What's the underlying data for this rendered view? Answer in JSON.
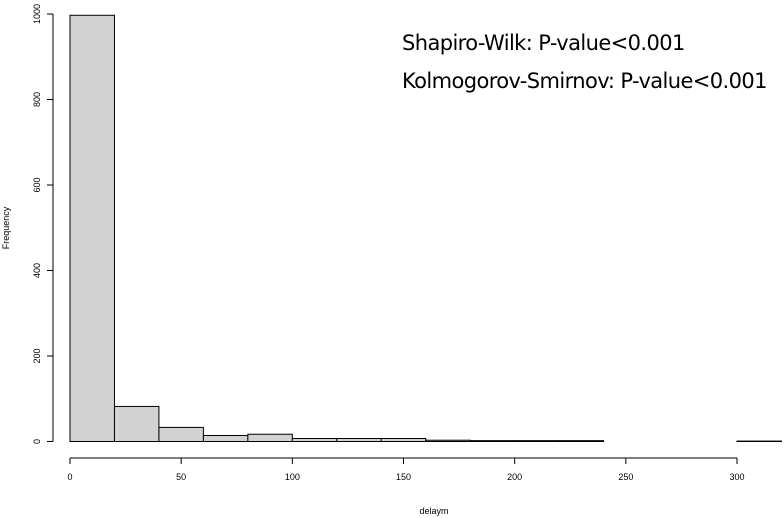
{
  "chart_data": {
    "type": "bar",
    "subtype": "histogram",
    "title": "",
    "xlabel": "delaym",
    "ylabel": "Frequency",
    "bin_edges": [
      0,
      20,
      40,
      60,
      80,
      100,
      120,
      140,
      160,
      180,
      200,
      220,
      240,
      260,
      280,
      300,
      320
    ],
    "values": [
      997,
      82,
      33,
      14,
      17,
      7,
      7,
      7,
      3,
      2,
      2,
      2,
      0,
      0,
      0,
      1
    ],
    "xlim": [
      0,
      320
    ],
    "ylim": [
      0,
      1000
    ],
    "x_ticks": [
      0,
      50,
      100,
      150,
      200,
      250,
      300
    ],
    "y_ticks": [
      0,
      200,
      400,
      600,
      800,
      1000
    ],
    "bar_color": "#d3d3d3",
    "grid": false,
    "annotations": [
      "Shapiro-Wilk: P-value<0.001",
      "Kolmogorov-Smirnov: P-value<0.001"
    ]
  }
}
